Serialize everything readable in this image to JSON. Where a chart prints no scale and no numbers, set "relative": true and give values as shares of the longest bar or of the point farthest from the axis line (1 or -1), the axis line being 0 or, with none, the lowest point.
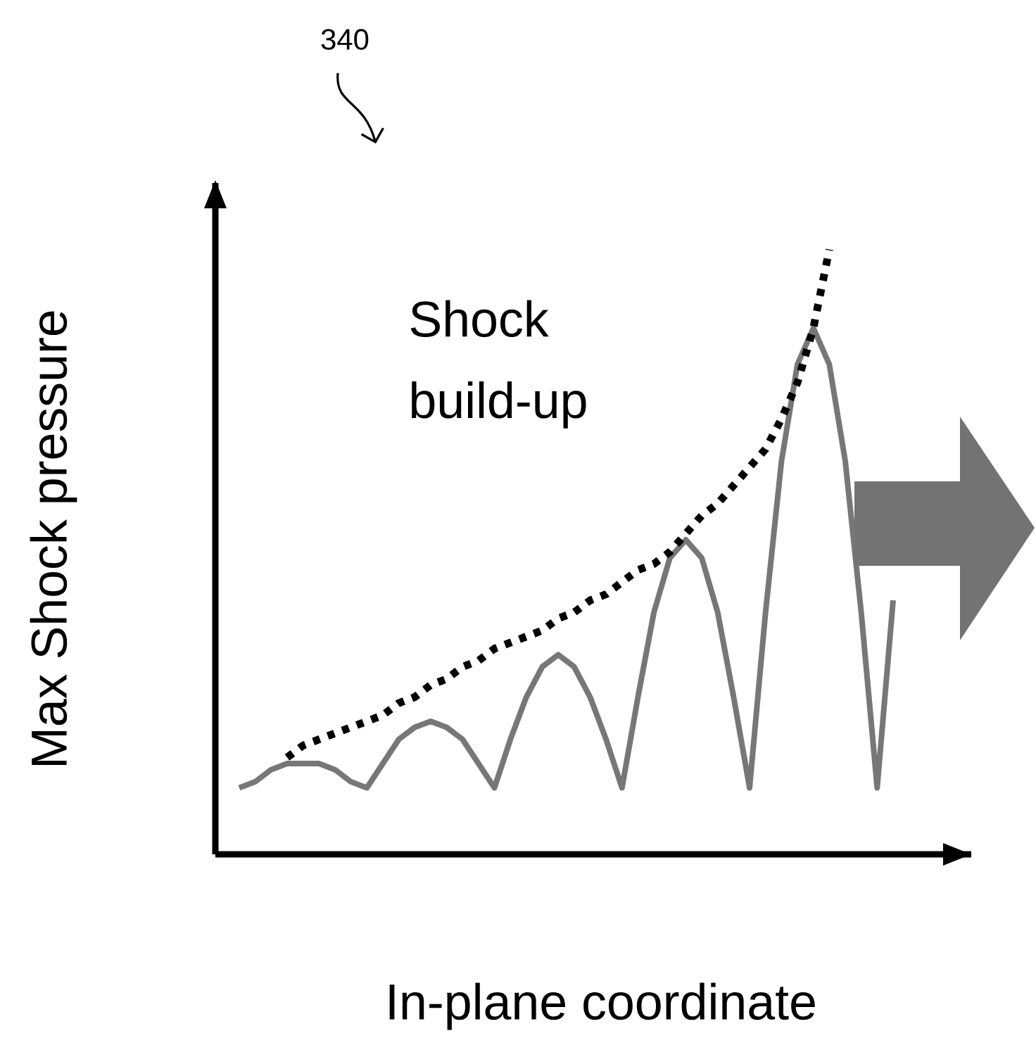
{
  "chart_data": {
    "type": "line",
    "relative": true,
    "xlabel": "In-plane coordinate",
    "ylabel": "Max Shock pressure",
    "annotations": [
      "340",
      "Shock build-up"
    ],
    "categories": [
      null,
      null,
      null,
      null,
      null,
      null,
      null,
      null,
      null,
      null,
      null,
      null,
      null,
      null,
      null,
      null,
      null,
      null,
      null,
      null,
      null,
      null,
      null,
      null,
      null,
      null,
      null,
      null,
      null,
      null,
      null,
      null,
      null,
      null,
      null,
      null,
      null,
      null,
      null,
      null,
      null,
      null
    ],
    "series": [
      {
        "color": "#777777",
        "line_style": "solid",
        "values": [
          0.11,
          0.12,
          0.14,
          0.15,
          0.15,
          0.15,
          0.14,
          0.12,
          0.11,
          0.15,
          0.19,
          0.21,
          0.22,
          0.21,
          0.19,
          0.15,
          0.11,
          0.19,
          0.26,
          0.31,
          0.33,
          0.31,
          0.26,
          0.19,
          0.11,
          0.26,
          0.4,
          0.49,
          0.52,
          0.49,
          0.4,
          0.26,
          0.11,
          0.4,
          0.65,
          0.81,
          0.87,
          0.81,
          0.65,
          0.4,
          0.11,
          0.42
        ]
      },
      {
        "color": "#000000",
        "line_style": "dotted",
        "values": [
          null,
          null,
          null,
          0.16,
          0.18,
          0.19,
          0.2,
          0.21,
          0.22,
          0.23,
          0.25,
          0.26,
          0.28,
          0.29,
          0.31,
          0.32,
          0.34,
          0.35,
          0.36,
          0.37,
          0.39,
          0.4,
          0.42,
          0.43,
          0.45,
          0.47,
          0.48,
          0.5,
          0.53,
          0.56,
          0.58,
          0.61,
          0.64,
          0.67,
          0.72,
          0.78,
          0.87,
          1.0,
          null,
          null,
          null,
          null
        ]
      }
    ]
  }
}
